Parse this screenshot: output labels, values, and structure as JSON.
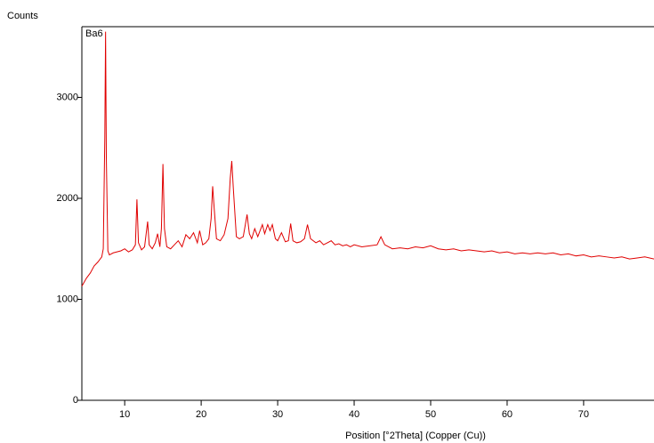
{
  "chart_data": {
    "type": "line",
    "y_label": "Counts",
    "x_label": "Position [°2Theta] (Copper (Cu))",
    "annotation": "Ba6",
    "x": [
      4.4,
      5,
      5.5,
      6,
      6.5,
      7,
      7.2,
      7.4,
      7.5,
      7.6,
      7.8,
      8,
      8.5,
      9,
      9.5,
      10,
      10.5,
      11,
      11.4,
      11.6,
      11.8,
      12.2,
      12.6,
      13,
      13.2,
      13.6,
      14,
      14.3,
      14.6,
      14.8,
      15,
      15.2,
      15.5,
      16,
      16.5,
      17,
      17.5,
      18,
      18.5,
      19,
      19.5,
      19.8,
      20.2,
      20.6,
      21,
      21.3,
      21.5,
      21.7,
      22,
      22.5,
      23,
      23.5,
      23.8,
      24,
      24.2,
      24.6,
      25,
      25.5,
      26,
      26.3,
      26.6,
      27,
      27.4,
      28,
      28.3,
      28.7,
      29,
      29.3,
      29.7,
      30,
      30.5,
      31,
      31.4,
      31.7,
      32,
      32.5,
      33,
      33.5,
      33.9,
      34.3,
      35,
      35.5,
      36,
      36.5,
      37,
      37.5,
      38,
      38.5,
      39,
      39.5,
      40,
      41,
      42,
      43,
      43.5,
      44,
      45,
      46,
      47,
      48,
      49,
      50,
      51,
      52,
      53,
      54,
      55,
      56,
      57,
      58,
      59,
      60,
      61,
      62,
      63,
      64,
      65,
      66,
      67,
      68,
      69,
      70,
      71,
      72,
      73,
      74,
      75,
      76,
      77,
      78,
      79.2
    ],
    "series": [
      {
        "color": "#e00000",
        "values": [
          1130,
          1210,
          1260,
          1330,
          1370,
          1420,
          1500,
          2600,
          3650,
          2400,
          1480,
          1440,
          1460,
          1470,
          1480,
          1500,
          1470,
          1490,
          1540,
          1990,
          1560,
          1490,
          1520,
          1770,
          1540,
          1500,
          1560,
          1650,
          1520,
          1700,
          2340,
          1700,
          1520,
          1500,
          1540,
          1580,
          1520,
          1640,
          1600,
          1660,
          1560,
          1680,
          1540,
          1560,
          1600,
          1800,
          2120,
          1900,
          1600,
          1580,
          1640,
          1800,
          2200,
          2370,
          2100,
          1620,
          1600,
          1620,
          1840,
          1650,
          1600,
          1700,
          1620,
          1740,
          1650,
          1740,
          1680,
          1740,
          1600,
          1580,
          1660,
          1570,
          1580,
          1750,
          1580,
          1560,
          1570,
          1600,
          1740,
          1600,
          1560,
          1580,
          1540,
          1560,
          1580,
          1540,
          1550,
          1530,
          1540,
          1520,
          1540,
          1520,
          1530,
          1540,
          1620,
          1540,
          1500,
          1510,
          1500,
          1520,
          1510,
          1530,
          1500,
          1490,
          1500,
          1480,
          1490,
          1480,
          1470,
          1480,
          1460,
          1470,
          1450,
          1460,
          1450,
          1460,
          1450,
          1460,
          1440,
          1450,
          1430,
          1440,
          1420,
          1430,
          1420,
          1410,
          1420,
          1400,
          1410,
          1420,
          1400
        ]
      }
    ],
    "xlim": [
      4.4,
      79.2
    ],
    "xticks": [
      10,
      20,
      30,
      40,
      50,
      60,
      70
    ],
    "ylim": [
      0,
      3700
    ],
    "yticks": [
      0,
      1000,
      2000,
      3000
    ]
  }
}
